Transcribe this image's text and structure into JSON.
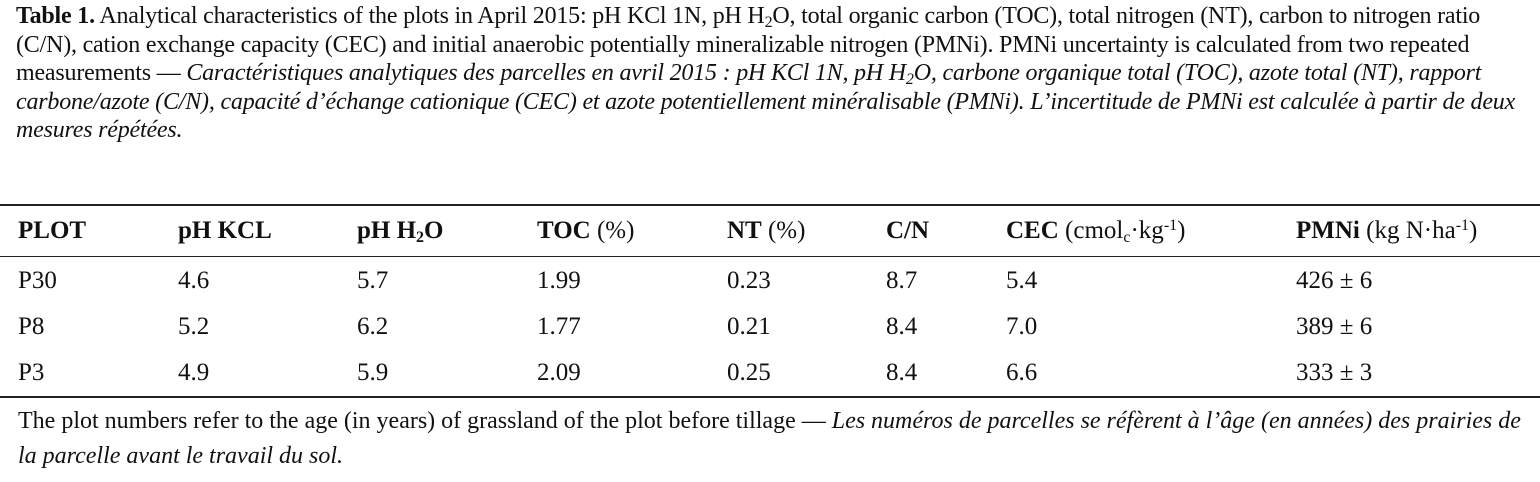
{
  "caption": {
    "label": "Table 1.",
    "english": [
      "Analytical characteristics of the plots in April 2015: pH KCl 1N, pH H",
      "2",
      "O, total organic carbon (TOC), total nitrogen (NT), carbon to nitrogen ratio (C/N), cation exchange capacity (CEC) and initial anaerobic potentially mineralizable nitrogen (PMNi). PMNi uncertainty is calculated from two repeated measurements"
    ],
    "separator": "—",
    "french": [
      "Caractéristiques analytiques des parcelles en avril 2015 : pH KCl 1N, pH H",
      "2",
      "O, carbone organique total (TOC), azote total (NT), rapport carbone/azote (C/N), capacité d’échange cationique (CEC) et azote potentiellement minéralisable (PMNi). L’incertitude de PMNi est calculée à partir de deux mesures répétées."
    ]
  },
  "table": {
    "headers": [
      [
        "PLOT"
      ],
      [
        "pH KCL"
      ],
      [
        "pH H",
        "2",
        "O"
      ],
      [
        "TOC",
        " (%)"
      ],
      [
        "NT",
        " (%)"
      ],
      [
        "C/N"
      ],
      [
        "CEC",
        " (cmol",
        "c",
        "·kg",
        "-1",
        ")"
      ],
      [
        "PMNi",
        " (kg N·ha",
        "-1",
        ")"
      ]
    ],
    "rows": [
      [
        "P30",
        "4.6",
        "5.7",
        "1.99",
        "0.23",
        "8.7",
        "5.4",
        "426 ± 6"
      ],
      [
        "P8",
        "5.2",
        "6.2",
        "1.77",
        "0.21",
        "8.4",
        "7.0",
        "389 ± 6"
      ],
      [
        "P3",
        "4.9",
        "5.9",
        "2.09",
        "0.25",
        "8.4",
        "6.6",
        "333 ± 3"
      ]
    ]
  },
  "footnote": {
    "english": "The plot numbers refer to the age (in years) of grassland of the plot before tillage",
    "separator": "—",
    "french": "Les numéros de parcelles se réfèrent à l’âge (en années) des prairies de la parcelle avant le travail du sol."
  }
}
